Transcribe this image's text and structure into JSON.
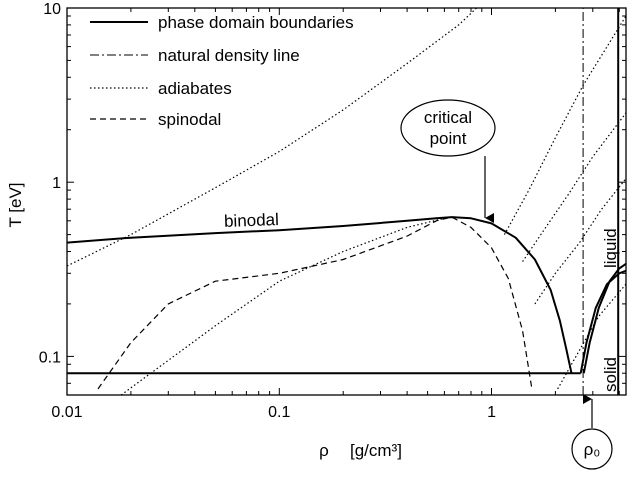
{
  "chart_data": {
    "type": "line",
    "xscale": "log",
    "yscale": "log",
    "xlim": [
      0.01,
      4.3
    ],
    "ylim": [
      0.06,
      10
    ],
    "xlabel": "ρ",
    "xunit": "[g/cm³]",
    "ylabel": "T  [eV]",
    "x_ticks": [
      {
        "value": 0.01,
        "label": "0.01"
      },
      {
        "value": 0.1,
        "label": "0.1"
      },
      {
        "value": 1,
        "label": "1"
      }
    ],
    "y_ticks": [
      {
        "value": 0.1,
        "label": "0.1"
      },
      {
        "value": 1,
        "label": "1"
      },
      {
        "value": 10,
        "label": "10"
      }
    ],
    "legend": {
      "position": "top-left",
      "entries": [
        {
          "label": "phase domain boundaries",
          "style": "solid"
        },
        {
          "label": "natural density line",
          "style": "dashdot"
        },
        {
          "label": "adiabates",
          "style": "dotted"
        },
        {
          "label": "spinodal",
          "style": "dashed"
        }
      ]
    },
    "series": [
      {
        "style": "solid",
        "points": [
          [
            0.01,
            0.45
          ],
          [
            0.02,
            0.48
          ],
          [
            0.05,
            0.51
          ],
          [
            0.1,
            0.53
          ],
          [
            0.2,
            0.56
          ],
          [
            0.4,
            0.6
          ],
          [
            0.55,
            0.62
          ],
          [
            0.65,
            0.63
          ],
          [
            0.8,
            0.62
          ],
          [
            1.0,
            0.58
          ],
          [
            1.3,
            0.48
          ],
          [
            1.6,
            0.36
          ],
          [
            1.9,
            0.24
          ],
          [
            2.1,
            0.16
          ],
          [
            2.25,
            0.11
          ],
          [
            2.38,
            0.08
          ]
        ]
      },
      {
        "style": "solid",
        "points": [
          [
            0.01,
            0.08
          ],
          [
            2.63,
            0.08
          ]
        ]
      },
      {
        "style": "solid",
        "points": [
          [
            2.63,
            0.08
          ],
          [
            2.8,
            0.12
          ],
          [
            3.1,
            0.19
          ],
          [
            3.5,
            0.26
          ],
          [
            4.0,
            0.3
          ],
          [
            4.3,
            0.31
          ]
        ]
      },
      {
        "style": "solid",
        "points": [
          [
            2.72,
            0.08
          ],
          [
            2.9,
            0.12
          ],
          [
            3.2,
            0.19
          ],
          [
            3.6,
            0.27
          ],
          [
            4.0,
            0.32
          ],
          [
            4.3,
            0.34
          ]
        ]
      },
      {
        "style": "solid",
        "points": [
          [
            3.95,
            0.06
          ],
          [
            3.95,
            10
          ]
        ]
      },
      {
        "style": "dashdot",
        "points": [
          [
            2.7,
            0.06
          ],
          [
            2.7,
            10
          ]
        ]
      },
      {
        "style": "dashed",
        "points": [
          [
            0.014,
            0.065
          ],
          [
            0.02,
            0.12
          ],
          [
            0.03,
            0.2
          ],
          [
            0.05,
            0.27
          ],
          [
            0.1,
            0.3
          ],
          [
            0.2,
            0.36
          ],
          [
            0.4,
            0.49
          ],
          [
            0.55,
            0.6
          ],
          [
            0.65,
            0.63
          ],
          [
            0.8,
            0.55
          ],
          [
            1.0,
            0.42
          ],
          [
            1.2,
            0.28
          ],
          [
            1.4,
            0.14
          ],
          [
            1.55,
            0.065
          ]
        ]
      },
      {
        "style": "dotted",
        "points": [
          [
            0.01,
            0.33
          ],
          [
            0.02,
            0.5
          ],
          [
            0.05,
            0.93
          ],
          [
            0.1,
            1.5
          ],
          [
            0.2,
            2.6
          ],
          [
            0.4,
            4.8
          ],
          [
            0.7,
            8.0
          ],
          [
            0.85,
            10
          ]
        ]
      },
      {
        "style": "dotted",
        "points": [
          [
            0.018,
            0.06
          ],
          [
            0.05,
            0.15
          ],
          [
            0.1,
            0.27
          ],
          [
            0.2,
            0.4
          ],
          [
            0.4,
            0.55
          ],
          [
            0.6,
            0.62
          ]
        ]
      },
      {
        "style": "dotted",
        "points": [
          [
            1.15,
            0.5
          ],
          [
            1.5,
            0.9
          ],
          [
            2.0,
            1.8
          ],
          [
            2.7,
            3.6
          ],
          [
            4.3,
            9.0
          ]
        ]
      },
      {
        "style": "dotted",
        "points": [
          [
            1.4,
            0.35
          ],
          [
            1.8,
            0.55
          ],
          [
            2.3,
            0.85
          ],
          [
            3.0,
            1.4
          ],
          [
            4.3,
            2.5
          ]
        ]
      },
      {
        "style": "dotted",
        "points": [
          [
            1.6,
            0.2
          ],
          [
            2.0,
            0.3
          ],
          [
            2.6,
            0.45
          ],
          [
            3.3,
            0.7
          ],
          [
            4.3,
            1.05
          ]
        ]
      },
      {
        "style": "dotted",
        "points": [
          [
            2.05,
            0.065
          ],
          [
            2.5,
            0.1
          ],
          [
            3.2,
            0.17
          ],
          [
            4.3,
            0.26
          ]
        ]
      }
    ],
    "annotations": [
      {
        "text": "binodal",
        "x": 0.1,
        "y": 0.6
      },
      {
        "text": "critical point",
        "x": 0.65,
        "y": 0.63
      },
      {
        "text": "liquid",
        "x": 3.3,
        "y": 0.6
      },
      {
        "text": "solid",
        "x": 3.3,
        "y": 0.085
      },
      {
        "text": "ρ₀",
        "x": 2.7,
        "y": 0.06
      }
    ]
  }
}
